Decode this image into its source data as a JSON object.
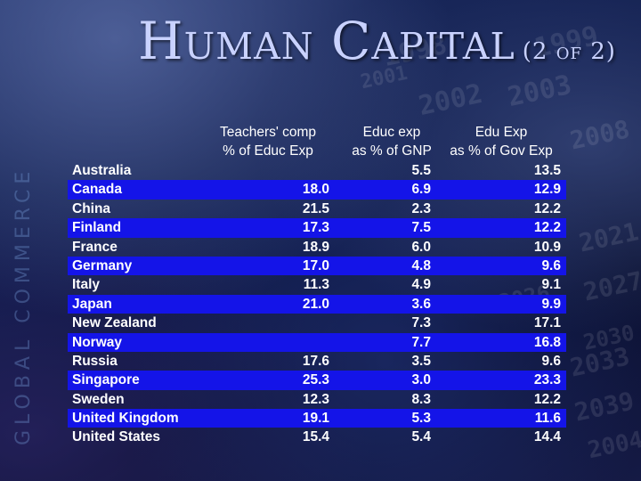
{
  "title": {
    "main": "Human Capital",
    "sub": "(2 of 2)"
  },
  "background_text": {
    "side_label": "GLOBAL COMMERCE",
    "numbers": [
      "1998",
      "1999",
      "2002",
      "2003",
      "2008",
      "2021",
      "2027",
      "2033",
      "2039",
      "2026",
      "2030",
      "2004",
      "2001"
    ]
  },
  "table": {
    "headers": [
      {
        "line1": "Teachers' comp",
        "line2": "% of Educ Exp"
      },
      {
        "line1": "Educ exp",
        "line2": "as % of GNP"
      },
      {
        "line1": "Edu Exp",
        "line2": "as % of Gov Exp"
      }
    ],
    "rows": [
      {
        "country": "Australia",
        "teachers": "",
        "gnp": "5.5",
        "gov": "13.5",
        "highlight": false
      },
      {
        "country": "Canada",
        "teachers": "18.0",
        "gnp": "6.9",
        "gov": "12.9",
        "highlight": true
      },
      {
        "country": "China",
        "teachers": "21.5",
        "gnp": "2.3",
        "gov": "12.2",
        "highlight": false
      },
      {
        "country": "Finland",
        "teachers": "17.3",
        "gnp": "7.5",
        "gov": "12.2",
        "highlight": true
      },
      {
        "country": "France",
        "teachers": "18.9",
        "gnp": "6.0",
        "gov": "10.9",
        "highlight": false
      },
      {
        "country": "Germany",
        "teachers": "17.0",
        "gnp": "4.8",
        "gov": "9.6",
        "highlight": true
      },
      {
        "country": "Italy",
        "teachers": "11.3",
        "gnp": "4.9",
        "gov": "9.1",
        "highlight": false
      },
      {
        "country": "Japan",
        "teachers": "21.0",
        "gnp": "3.6",
        "gov": "9.9",
        "highlight": true
      },
      {
        "country": "New Zealand",
        "teachers": "",
        "gnp": "7.3",
        "gov": "17.1",
        "highlight": false
      },
      {
        "country": "Norway",
        "teachers": "",
        "gnp": "7.7",
        "gov": "16.8",
        "highlight": true
      },
      {
        "country": "Russia",
        "teachers": "17.6",
        "gnp": "3.5",
        "gov": "9.6",
        "highlight": false
      },
      {
        "country": "Singapore",
        "teachers": "25.3",
        "gnp": "3.0",
        "gov": "23.3",
        "highlight": true
      },
      {
        "country": "Sweden",
        "teachers": "12.3",
        "gnp": "8.3",
        "gov": "12.2",
        "highlight": false
      },
      {
        "country": "United Kingdom",
        "teachers": "19.1",
        "gnp": "5.3",
        "gov": "11.6",
        "highlight": true
      },
      {
        "country": "United States",
        "teachers": "15.4",
        "gnp": "5.4",
        "gov": "14.4",
        "highlight": false
      }
    ]
  },
  "colors": {
    "highlight": "#1414e8",
    "title": "#c9d2ff",
    "text": "#ffffff"
  }
}
